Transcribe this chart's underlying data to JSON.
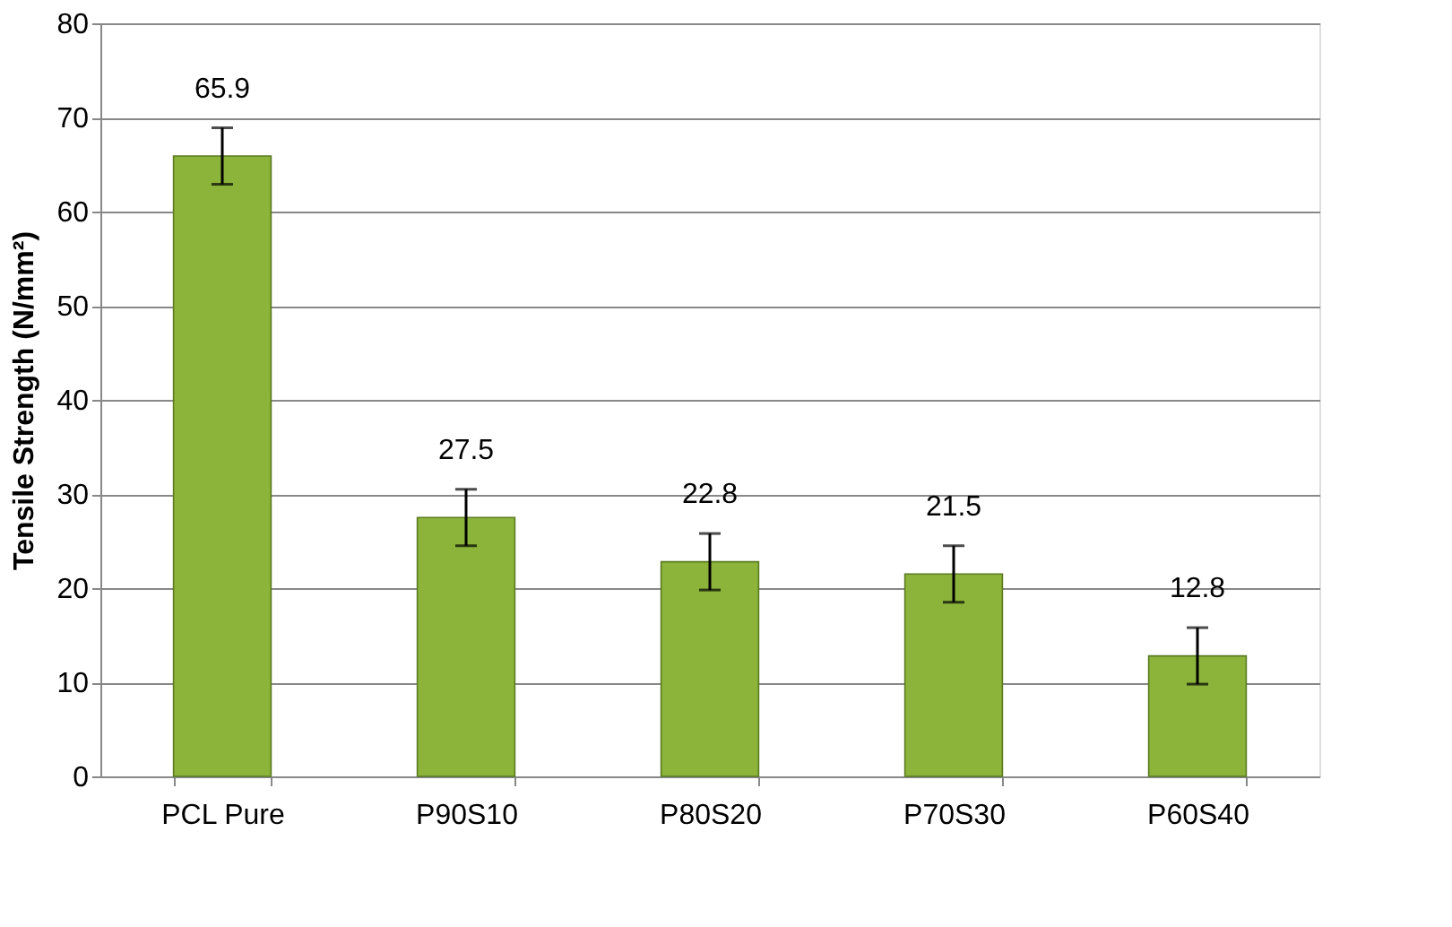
{
  "chart_data": {
    "type": "bar",
    "ylabel": "Tensile Strength (N/mm²)",
    "categories": [
      "PCL Pure",
      "P90S10",
      "P80S20",
      "P70S30",
      "P60S40"
    ],
    "values": [
      65.9,
      27.5,
      22.8,
      21.5,
      12.8
    ],
    "errors": [
      3,
      3,
      3,
      3,
      3
    ],
    "color": "#8cb43a",
    "ylim": [
      0,
      80
    ],
    "yticks": [
      0,
      10,
      20,
      30,
      40,
      50,
      60,
      70,
      80
    ],
    "grid": "y",
    "data_labels": true
  }
}
